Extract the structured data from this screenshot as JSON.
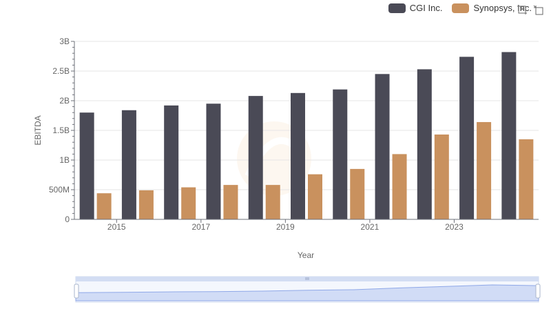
{
  "chart_data": {
    "type": "bar",
    "categories": [
      "2014",
      "2015",
      "2016",
      "2017",
      "2018",
      "2019",
      "2020",
      "2021",
      "2022",
      "2023",
      "2024"
    ],
    "series": [
      {
        "name": "CGI Inc.",
        "color": "#4a4a56",
        "values": [
          1.8,
          1.84,
          1.92,
          1.95,
          2.08,
          2.13,
          2.19,
          2.45,
          2.53,
          2.74,
          2.82
        ]
      },
      {
        "name": "Synopsys, Inc.",
        "color": "#c9915e",
        "values": [
          0.44,
          0.49,
          0.54,
          0.58,
          0.58,
          0.76,
          0.85,
          1.1,
          1.43,
          1.64,
          1.35
        ]
      }
    ],
    "value_unit": "billions USD",
    "ylim": [
      0,
      3
    ],
    "yticks": [
      "0",
      "500M",
      "1B",
      "1.5B",
      "2B",
      "2.5B",
      "3B"
    ],
    "xticks": [
      "2015",
      "2017",
      "2019",
      "2021",
      "2023"
    ],
    "xlabel": "Year",
    "ylabel": "EBITDA",
    "grid": true,
    "legend_position": "top-right"
  },
  "toolbox": {
    "zoom_icon": "zoom-select-icon",
    "reset_icon": "zoom-reset-icon"
  },
  "datazoom": {
    "range_start": 0,
    "range_end": 1,
    "handle_icon": "drag-handle-icon"
  }
}
